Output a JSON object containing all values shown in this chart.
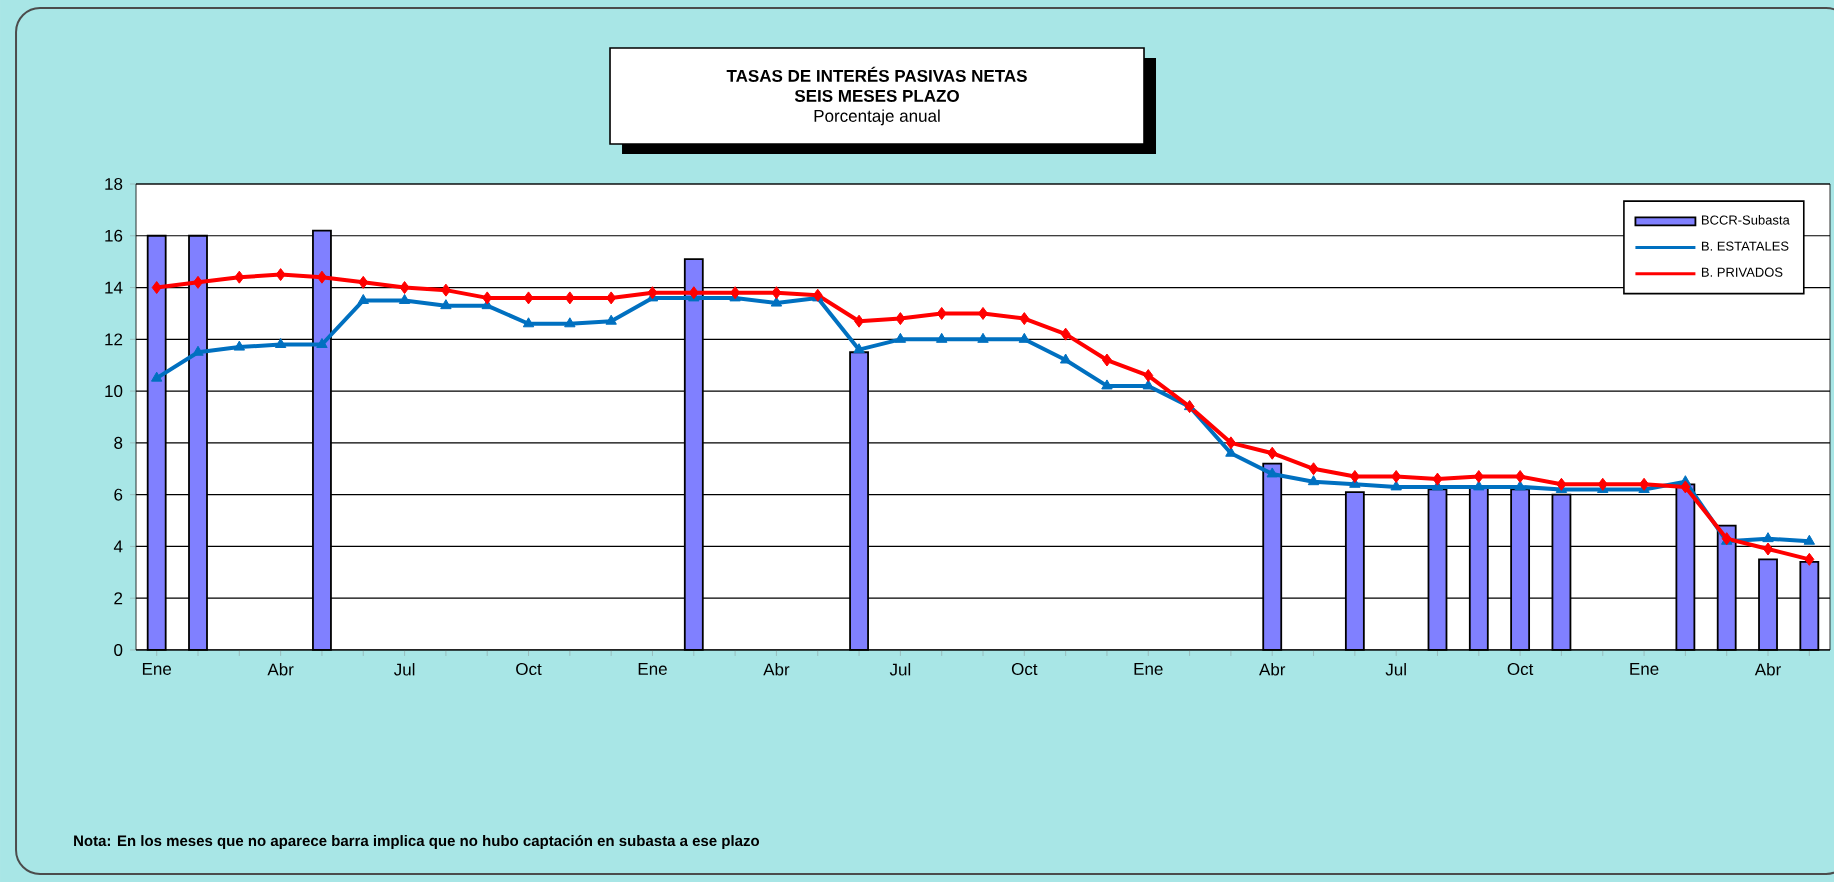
{
  "chart_data": {
    "type": "line",
    "title": "TASAS DE INTERÉS PASIVAS NETAS",
    "subtitle": "SEIS MESES PLAZO",
    "ylabel": "Porcentaje anual",
    "categories": [
      "Ene",
      null,
      null,
      "Abr",
      null,
      null,
      "Jul",
      null,
      null,
      "Oct",
      null,
      null,
      "Ene",
      null,
      null,
      "Abr",
      null,
      null,
      "Jul",
      null,
      null,
      "Oct",
      null,
      null,
      "Ene",
      null,
      null,
      "Abr",
      null,
      null,
      "Jul",
      null,
      null,
      "Oct",
      null,
      null,
      "Ene",
      null,
      null,
      "Abr",
      null
    ],
    "ylim": [
      0,
      18
    ],
    "yticks": [
      0,
      2,
      4,
      6,
      8,
      10,
      12,
      14,
      16,
      18
    ],
    "grid": "y",
    "legend": "top right",
    "series": [
      {
        "name": "BCCR-Subasta",
        "type": "bar",
        "color": "#8080ff",
        "values": [
          16.0,
          16.0,
          null,
          null,
          16.2,
          null,
          null,
          null,
          null,
          null,
          null,
          null,
          null,
          15.1,
          null,
          null,
          null,
          11.5,
          null,
          null,
          null,
          null,
          null,
          null,
          null,
          null,
          null,
          7.2,
          null,
          6.1,
          null,
          6.2,
          6.3,
          6.2,
          6.0,
          null,
          null,
          6.4,
          4.8,
          3.5,
          3.4
        ]
      },
      {
        "name": "B. ESTATALES",
        "color": "#0070c0",
        "marker": "triangle",
        "values": [
          10.5,
          11.5,
          11.7,
          11.8,
          11.8,
          13.5,
          13.5,
          13.3,
          13.3,
          12.6,
          12.6,
          12.7,
          13.6,
          13.6,
          13.6,
          13.4,
          13.6,
          11.6,
          12.0,
          12.0,
          12.0,
          12.0,
          11.2,
          10.2,
          10.2,
          9.4,
          7.6,
          6.8,
          6.5,
          6.4,
          6.3,
          6.3,
          6.3,
          6.3,
          6.2,
          6.2,
          6.2,
          6.5,
          4.2,
          4.3,
          4.2
        ]
      },
      {
        "name": "B. PRIVADOS",
        "color": "#ff0000",
        "marker": "diamond",
        "values": [
          14.0,
          14.2,
          14.4,
          14.5,
          14.4,
          14.2,
          14.0,
          13.9,
          13.6,
          13.6,
          13.6,
          13.6,
          13.8,
          13.8,
          13.8,
          13.8,
          13.7,
          12.7,
          12.8,
          13.0,
          13.0,
          12.8,
          12.2,
          11.2,
          10.6,
          9.4,
          8.0,
          7.6,
          7.0,
          6.7,
          6.7,
          6.6,
          6.7,
          6.7,
          6.4,
          6.4,
          6.4,
          6.3,
          4.3,
          3.9,
          3.5
        ]
      }
    ],
    "annotations": [
      "Nota: En los meses que no aparece barra implica que no hubo captación en subasta a ese plazo"
    ]
  }
}
